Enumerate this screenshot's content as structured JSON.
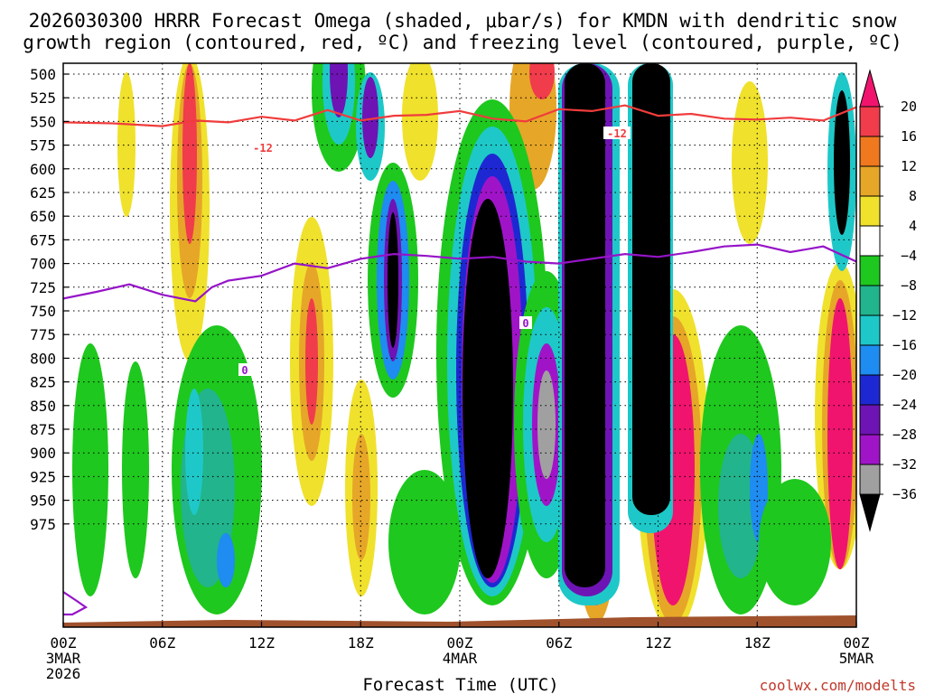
{
  "chart_data": {
    "type": "heatmap",
    "title_line1": "2026030300 HRRR Forecast Omega (shaded, μbar/s) for KMDN with dendritic snow",
    "title_line2": "growth region (contoured, red, ºC) and freezing level (contoured, purple, ºC)",
    "xlabel": "Forecast Time (UTC)",
    "ylabel": "",
    "y_ticks": [
      "500",
      "525",
      "550",
      "575",
      "600",
      "625",
      "650",
      "675",
      "700",
      "725",
      "750",
      "775",
      "800",
      "825",
      "850",
      "875",
      "900",
      "925",
      "950",
      "975"
    ],
    "x_ticks": [
      "00Z",
      "06Z",
      "12Z",
      "18Z",
      "00Z",
      "06Z",
      "12Z",
      "18Z",
      "00Z"
    ],
    "x_sub1": [
      "3MAR",
      "4MAR",
      "5MAR"
    ],
    "x_sub2": [
      "2026"
    ],
    "colorbar": {
      "ticks": [
        "20",
        "16",
        "12",
        "8",
        "4",
        "−4",
        "−8",
        "−12",
        "−16",
        "−20",
        "−24",
        "−28",
        "−32",
        "−36"
      ],
      "bins": [
        {
          "range": "16 to 20",
          "color": "#f03c4b"
        },
        {
          "range": "12 to 16",
          "color": "#f0781e"
        },
        {
          "range": "8 to 12",
          "color": "#e6a628"
        },
        {
          "range": "4 to 8",
          "color": "#f0e12d"
        },
        {
          "range": "-4 to 4",
          "color": "#ffffff"
        },
        {
          "range": "-8 to -4",
          "color": "#1ec81e"
        },
        {
          "range": "-12 to -8",
          "color": "#22b48c"
        },
        {
          "range": "-16 to -12",
          "color": "#1ec8c8"
        },
        {
          "range": "-20 to -16",
          "color": "#1e8cf0"
        },
        {
          "range": "-24 to -20",
          "color": "#1e28d2"
        },
        {
          "range": "-28 to -24",
          "color": "#6e14b4"
        },
        {
          "range": "-32 to -28",
          "color": "#a014c8"
        },
        {
          "range": "-36 to -32",
          "color": "#a0a0a0"
        }
      ],
      "top_arrow_color": "#f0146e",
      "bottom_arrow_color": "#000000"
    },
    "dgz_label": "-12",
    "freezing_label": "0",
    "dgz_line": {
      "color": "#f03c3c",
      "x_hours": [
        0,
        3,
        6,
        8,
        10,
        12,
        14,
        16,
        18,
        20,
        22,
        24,
        26,
        28,
        30,
        32,
        34,
        36,
        38,
        40,
        42,
        44,
        46,
        48
      ],
      "pressure_hpa": [
        551,
        552,
        555,
        549,
        551,
        545,
        549,
        538,
        549,
        544,
        543,
        539,
        547,
        550,
        537,
        539,
        533,
        544,
        542,
        547,
        548,
        546,
        549,
        535
      ]
    },
    "freezing_line": {
      "color": "#9614c8",
      "x_hours": [
        0,
        2,
        4,
        6,
        8,
        9,
        10,
        12,
        14,
        16,
        18,
        20,
        22,
        24,
        26,
        28,
        30,
        32,
        34,
        36,
        38,
        40,
        42,
        44,
        46,
        48
      ],
      "pressure_hpa": [
        737,
        730,
        722,
        733,
        740,
        725,
        718,
        713,
        700,
        705,
        695,
        690,
        692,
        695,
        693,
        698,
        700,
        695,
        690,
        693,
        688,
        682,
        680,
        688,
        682,
        698
      ]
    }
  },
  "credit": "coolwx.com/modelts"
}
